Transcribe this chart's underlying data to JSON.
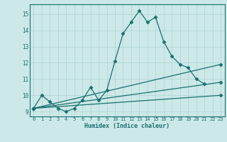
{
  "title": "",
  "xlabel": "Humidex (Indice chaleur)",
  "ylabel": "",
  "xlim": [
    -0.5,
    23.5
  ],
  "ylim": [
    8.7,
    15.6
  ],
  "xticks": [
    0,
    1,
    2,
    3,
    4,
    5,
    6,
    7,
    8,
    9,
    10,
    11,
    12,
    13,
    14,
    15,
    16,
    17,
    18,
    19,
    20,
    21,
    22,
    23
  ],
  "yticks": [
    9,
    10,
    11,
    12,
    13,
    14,
    15
  ],
  "bg_color": "#cce8e8",
  "line_color": "#1a7070",
  "grid_color": "#b0d4d4",
  "main_line": {
    "x": [
      0,
      1,
      2,
      3,
      4,
      5,
      6,
      7,
      8,
      9,
      10,
      11,
      12,
      13,
      14,
      15,
      16,
      17,
      18,
      19,
      20,
      21
    ],
    "y": [
      9.2,
      10.0,
      9.6,
      9.2,
      9.0,
      9.2,
      9.7,
      10.5,
      9.7,
      10.3,
      12.1,
      13.8,
      14.5,
      15.2,
      14.5,
      14.8,
      13.3,
      12.4,
      11.9,
      11.7,
      11.0,
      10.7
    ]
  },
  "straight_lines": [
    {
      "x": [
        0,
        23
      ],
      "y": [
        9.2,
        10.0
      ]
    },
    {
      "x": [
        0,
        23
      ],
      "y": [
        9.2,
        10.8
      ]
    },
    {
      "x": [
        0,
        23
      ],
      "y": [
        9.2,
        11.9
      ]
    }
  ],
  "marker": "D",
  "markersize": 2.5,
  "linewidth": 0.9
}
